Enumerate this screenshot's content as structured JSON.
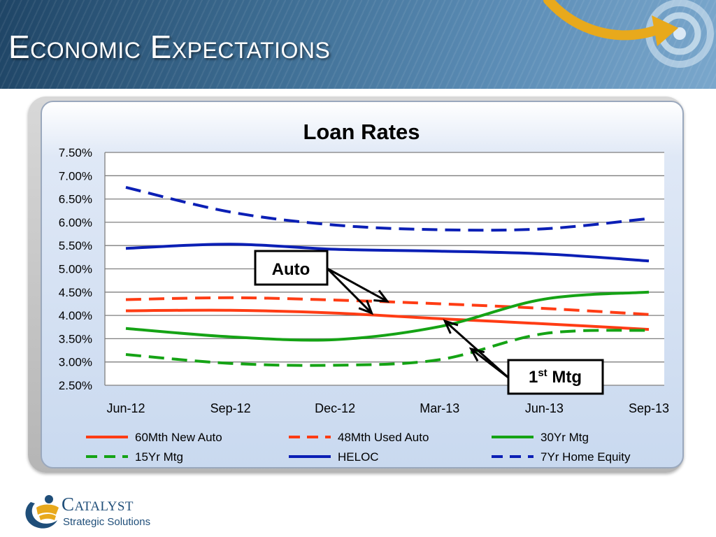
{
  "slide": {
    "title": "Economic Expectations",
    "logo_name": "Catalyst",
    "logo_tagline": "Strategic Solutions"
  },
  "chart_data": {
    "type": "line",
    "title": "Loan Rates",
    "xlabel": "",
    "ylabel": "",
    "categories": [
      "Jun-12",
      "Sep-12",
      "Dec-12",
      "Mar-13",
      "Jun-13",
      "Sep-13"
    ],
    "x": [
      0,
      1,
      2,
      3,
      4,
      5
    ],
    "ylim": [
      2.5,
      7.5
    ],
    "yticks": [
      2.5,
      3.0,
      3.5,
      4.0,
      4.5,
      5.0,
      5.5,
      6.0,
      6.5,
      7.0,
      7.5
    ],
    "ytick_labels": [
      "2.50%",
      "3.00%",
      "3.50%",
      "4.00%",
      "4.50%",
      "5.00%",
      "5.50%",
      "6.00%",
      "6.50%",
      "7.00%",
      "7.50%"
    ],
    "grid": true,
    "legend_position": "bottom",
    "series": [
      {
        "name": "60Mth New Auto",
        "color": "#ff3c14",
        "dash": false,
        "values": [
          4.1,
          4.11,
          4.05,
          3.93,
          3.82,
          3.7
        ]
      },
      {
        "name": "48Mth Used Auto",
        "color": "#ff3c14",
        "dash": true,
        "values": [
          4.34,
          4.38,
          4.33,
          4.25,
          4.15,
          4.02
        ]
      },
      {
        "name": "30Yr Mtg",
        "color": "#15a315",
        "dash": false,
        "values": [
          3.72,
          3.54,
          3.48,
          3.76,
          4.35,
          4.5
        ]
      },
      {
        "name": "15Yr Mtg",
        "color": "#15a315",
        "dash": true,
        "values": [
          3.16,
          2.97,
          2.93,
          3.05,
          3.61,
          3.68
        ]
      },
      {
        "name": "HELOC",
        "color": "#0b1fb5",
        "dash": false,
        "values": [
          5.44,
          5.53,
          5.42,
          5.38,
          5.32,
          5.17
        ]
      },
      {
        "name": "7Yr Home Equity",
        "color": "#0b1fb5",
        "dash": true,
        "values": [
          6.75,
          6.22,
          5.94,
          5.84,
          5.86,
          6.08
        ]
      }
    ],
    "annotations": [
      {
        "label": "Auto",
        "sup": "",
        "suffix": "",
        "targets": [
          [
            2.35,
            4.05
          ],
          [
            2.5,
            4.3
          ]
        ]
      },
      {
        "label": "1",
        "sup": "st",
        "suffix": " Mtg",
        "targets": [
          [
            3.3,
            3.28
          ],
          [
            3.05,
            3.88
          ]
        ]
      }
    ]
  }
}
